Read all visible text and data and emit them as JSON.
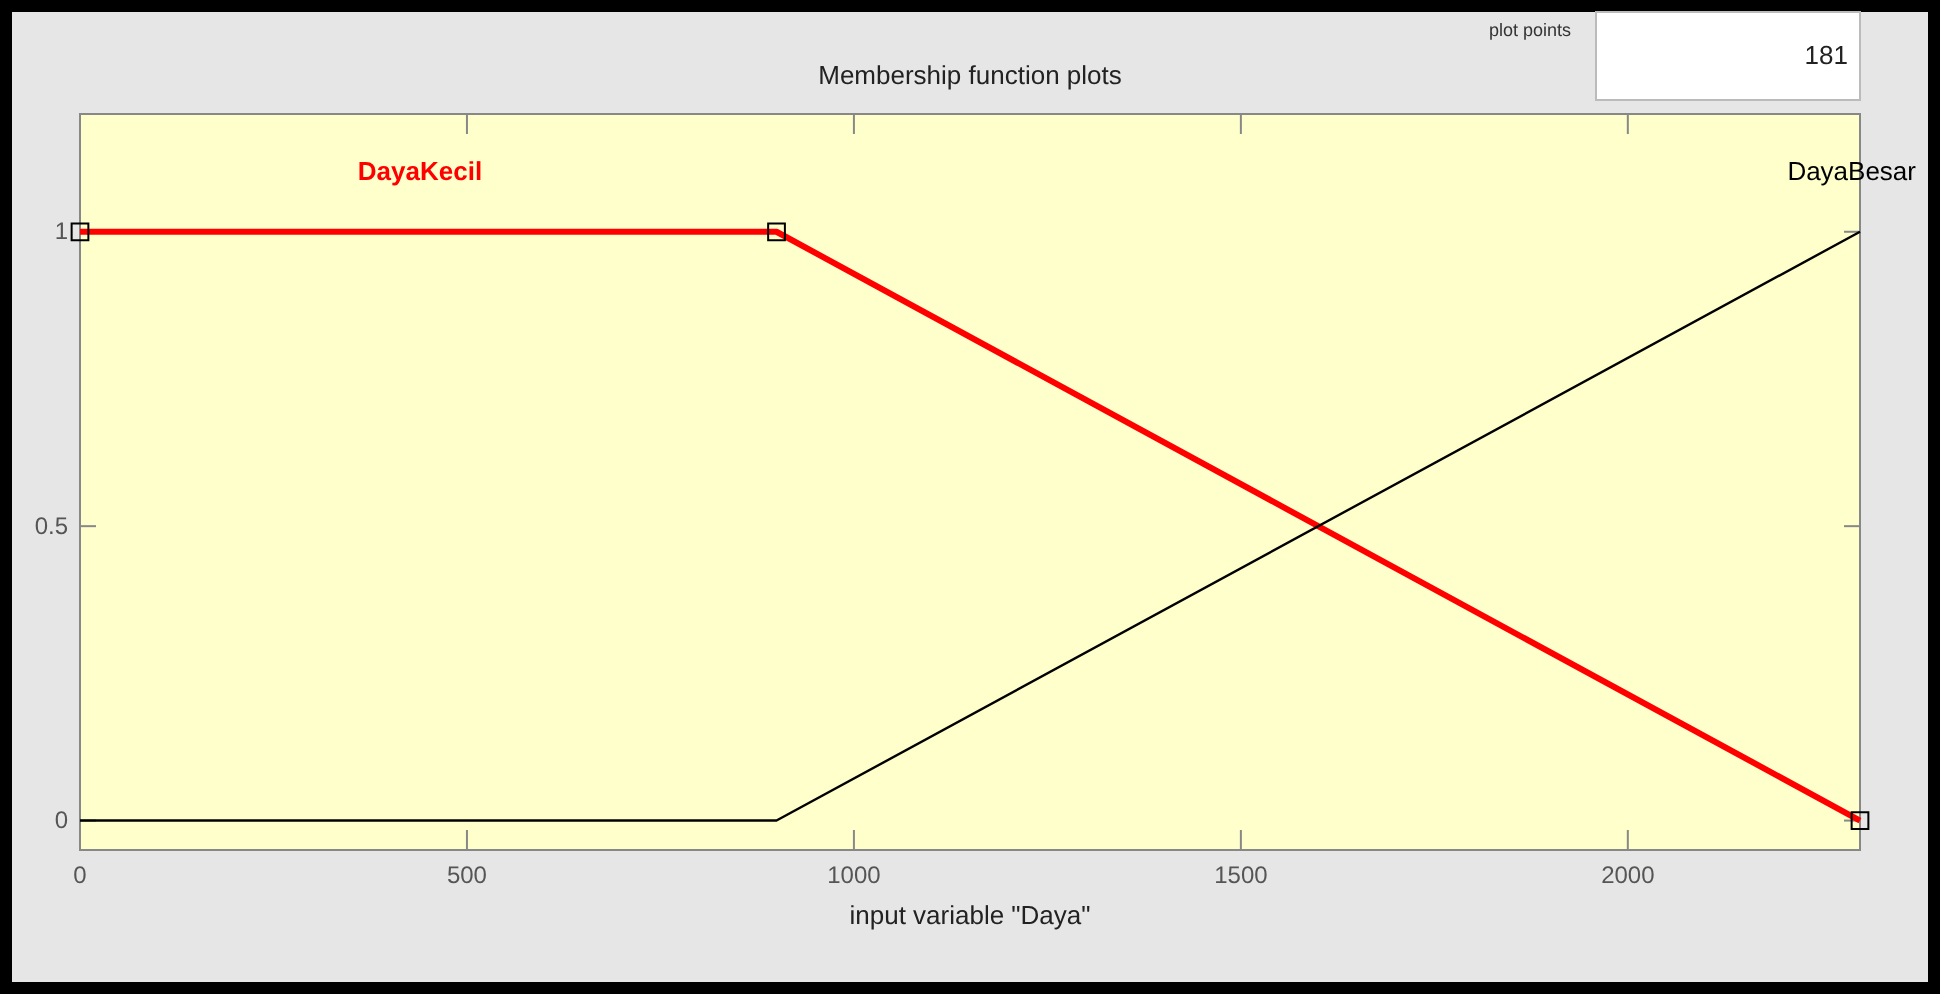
{
  "chart_data": {
    "type": "line",
    "title": "Membership function plots",
    "xlabel": "input variable \"Daya\"",
    "xlim": [
      0,
      2300
    ],
    "xticks": [
      0,
      500,
      1000,
      1500,
      2000
    ],
    "ylim": [
      -0.05,
      1.2
    ],
    "yticks": [
      0,
      0.5,
      1
    ],
    "series": [
      {
        "name": "DayaKecil",
        "color": "#ff0000",
        "x": [
          0,
          900,
          2300
        ],
        "values": [
          1,
          1,
          0
        ],
        "marker": "square"
      },
      {
        "name": "DayaBesar",
        "color": "#000000",
        "x": [
          0,
          900,
          2300
        ],
        "values": [
          0,
          0,
          1
        ],
        "marker": "none"
      }
    ],
    "annotations": [
      "plot points",
      "181"
    ],
    "grid": false,
    "legend": false
  }
}
